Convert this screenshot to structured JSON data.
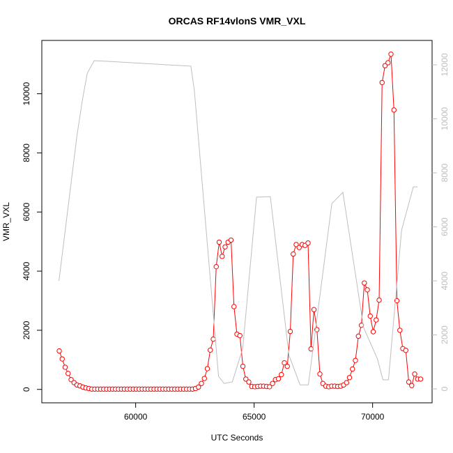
{
  "chart_data": {
    "type": "line",
    "title": "ORCAS RF14vlonS VMR_VXL",
    "xlabel": "UTC Seconds",
    "ylabel": "VMR_VXL",
    "x": [
      56775,
      56900,
      57025,
      57150,
      57275,
      57400,
      57525,
      57650,
      57775,
      57900,
      58025,
      58150,
      58275,
      58400,
      58525,
      58650,
      58775,
      58900,
      59025,
      59150,
      59275,
      59400,
      59525,
      59650,
      59775,
      59900,
      60025,
      60150,
      60275,
      60400,
      60525,
      60650,
      60775,
      60900,
      61025,
      61150,
      61275,
      61400,
      61525,
      61650,
      61775,
      61900,
      62025,
      62150,
      62275,
      62400,
      62525,
      62650,
      62775,
      62900,
      63025,
      63150,
      63275,
      63400,
      63525,
      63650,
      63775,
      63900,
      64025,
      64150,
      64275,
      64400,
      64525,
      64650,
      64775,
      64900,
      65025,
      65150,
      65275,
      65400,
      65525,
      65650,
      65775,
      65900,
      66025,
      66150,
      66275,
      66400,
      66525,
      66650,
      66775,
      66900,
      67025,
      67150,
      67275,
      67400,
      67525,
      67650,
      67775,
      67900,
      68025,
      68150,
      68275,
      68400,
      68525,
      68650,
      68775,
      68900,
      69025,
      69150,
      69275,
      69400,
      69525,
      69650,
      69775,
      69900,
      70025,
      70150,
      70275,
      70400,
      70525,
      70650,
      70775,
      70900,
      71025,
      71150,
      71275,
      71400,
      71525,
      71650,
      71775,
      71900,
      72025
    ],
    "series": [
      {
        "color": "#ff0000",
        "marker": "circle",
        "values": [
          1300,
          1030,
          750,
          540,
          330,
          230,
          150,
          120,
          80,
          50,
          30,
          10,
          10,
          10,
          10,
          10,
          10,
          10,
          10,
          10,
          10,
          10,
          10,
          10,
          10,
          10,
          10,
          10,
          10,
          10,
          10,
          10,
          10,
          10,
          10,
          10,
          10,
          10,
          10,
          10,
          10,
          10,
          10,
          10,
          10,
          10,
          30,
          80,
          200,
          370,
          700,
          1330,
          1700,
          4150,
          4980,
          4500,
          4820,
          4980,
          5050,
          2800,
          1870,
          1820,
          780,
          350,
          250,
          100,
          90,
          100,
          110,
          110,
          100,
          90,
          200,
          330,
          360,
          500,
          900,
          780,
          1960,
          4580,
          4900,
          4800,
          4900,
          4870,
          4950,
          1370,
          2700,
          2020,
          520,
          200,
          110,
          90,
          110,
          110,
          100,
          110,
          150,
          230,
          400,
          690,
          980,
          1800,
          2170,
          3600,
          3370,
          2480,
          1950,
          2350,
          3020,
          10380,
          10950,
          11050,
          11340,
          9450,
          3000,
          2000,
          1380,
          1320,
          250,
          130,
          520,
          350,
          350
        ]
      },
      {
        "color": "#bebebe",
        "axis": "y2",
        "x": [
          56764,
          57522,
          57755,
          57960,
          58250,
          58834,
          62332,
          62478,
          63498,
          63732,
          64081,
          64518,
          65101,
          65684,
          66471,
          66938,
          67288,
          68279,
          68745,
          69620,
          70203,
          70436,
          70669,
          71223,
          71718,
          71893
        ],
        "values": [
          4000,
          9370,
          10710,
          11690,
          12150,
          12130,
          11950,
          11045,
          465,
          200,
          260,
          1500,
          7100,
          7120,
          1240,
          150,
          150,
          6860,
          7280,
          2270,
          1110,
          335,
          335,
          5880,
          7480,
          7480
        ]
      }
    ],
    "xlim": [
      56040,
      72510
    ],
    "xticks": [
      60000,
      65000,
      70000
    ],
    "ylim": [
      -454,
      11804
    ],
    "yticks": [
      0,
      2000,
      4000,
      6000,
      8000,
      10000
    ],
    "y2lim": [
      -516,
      12903
    ],
    "y2ticks": [
      0,
      2000,
      4000,
      6000,
      8000,
      10000,
      12000
    ],
    "y2color": "#bebebe"
  }
}
